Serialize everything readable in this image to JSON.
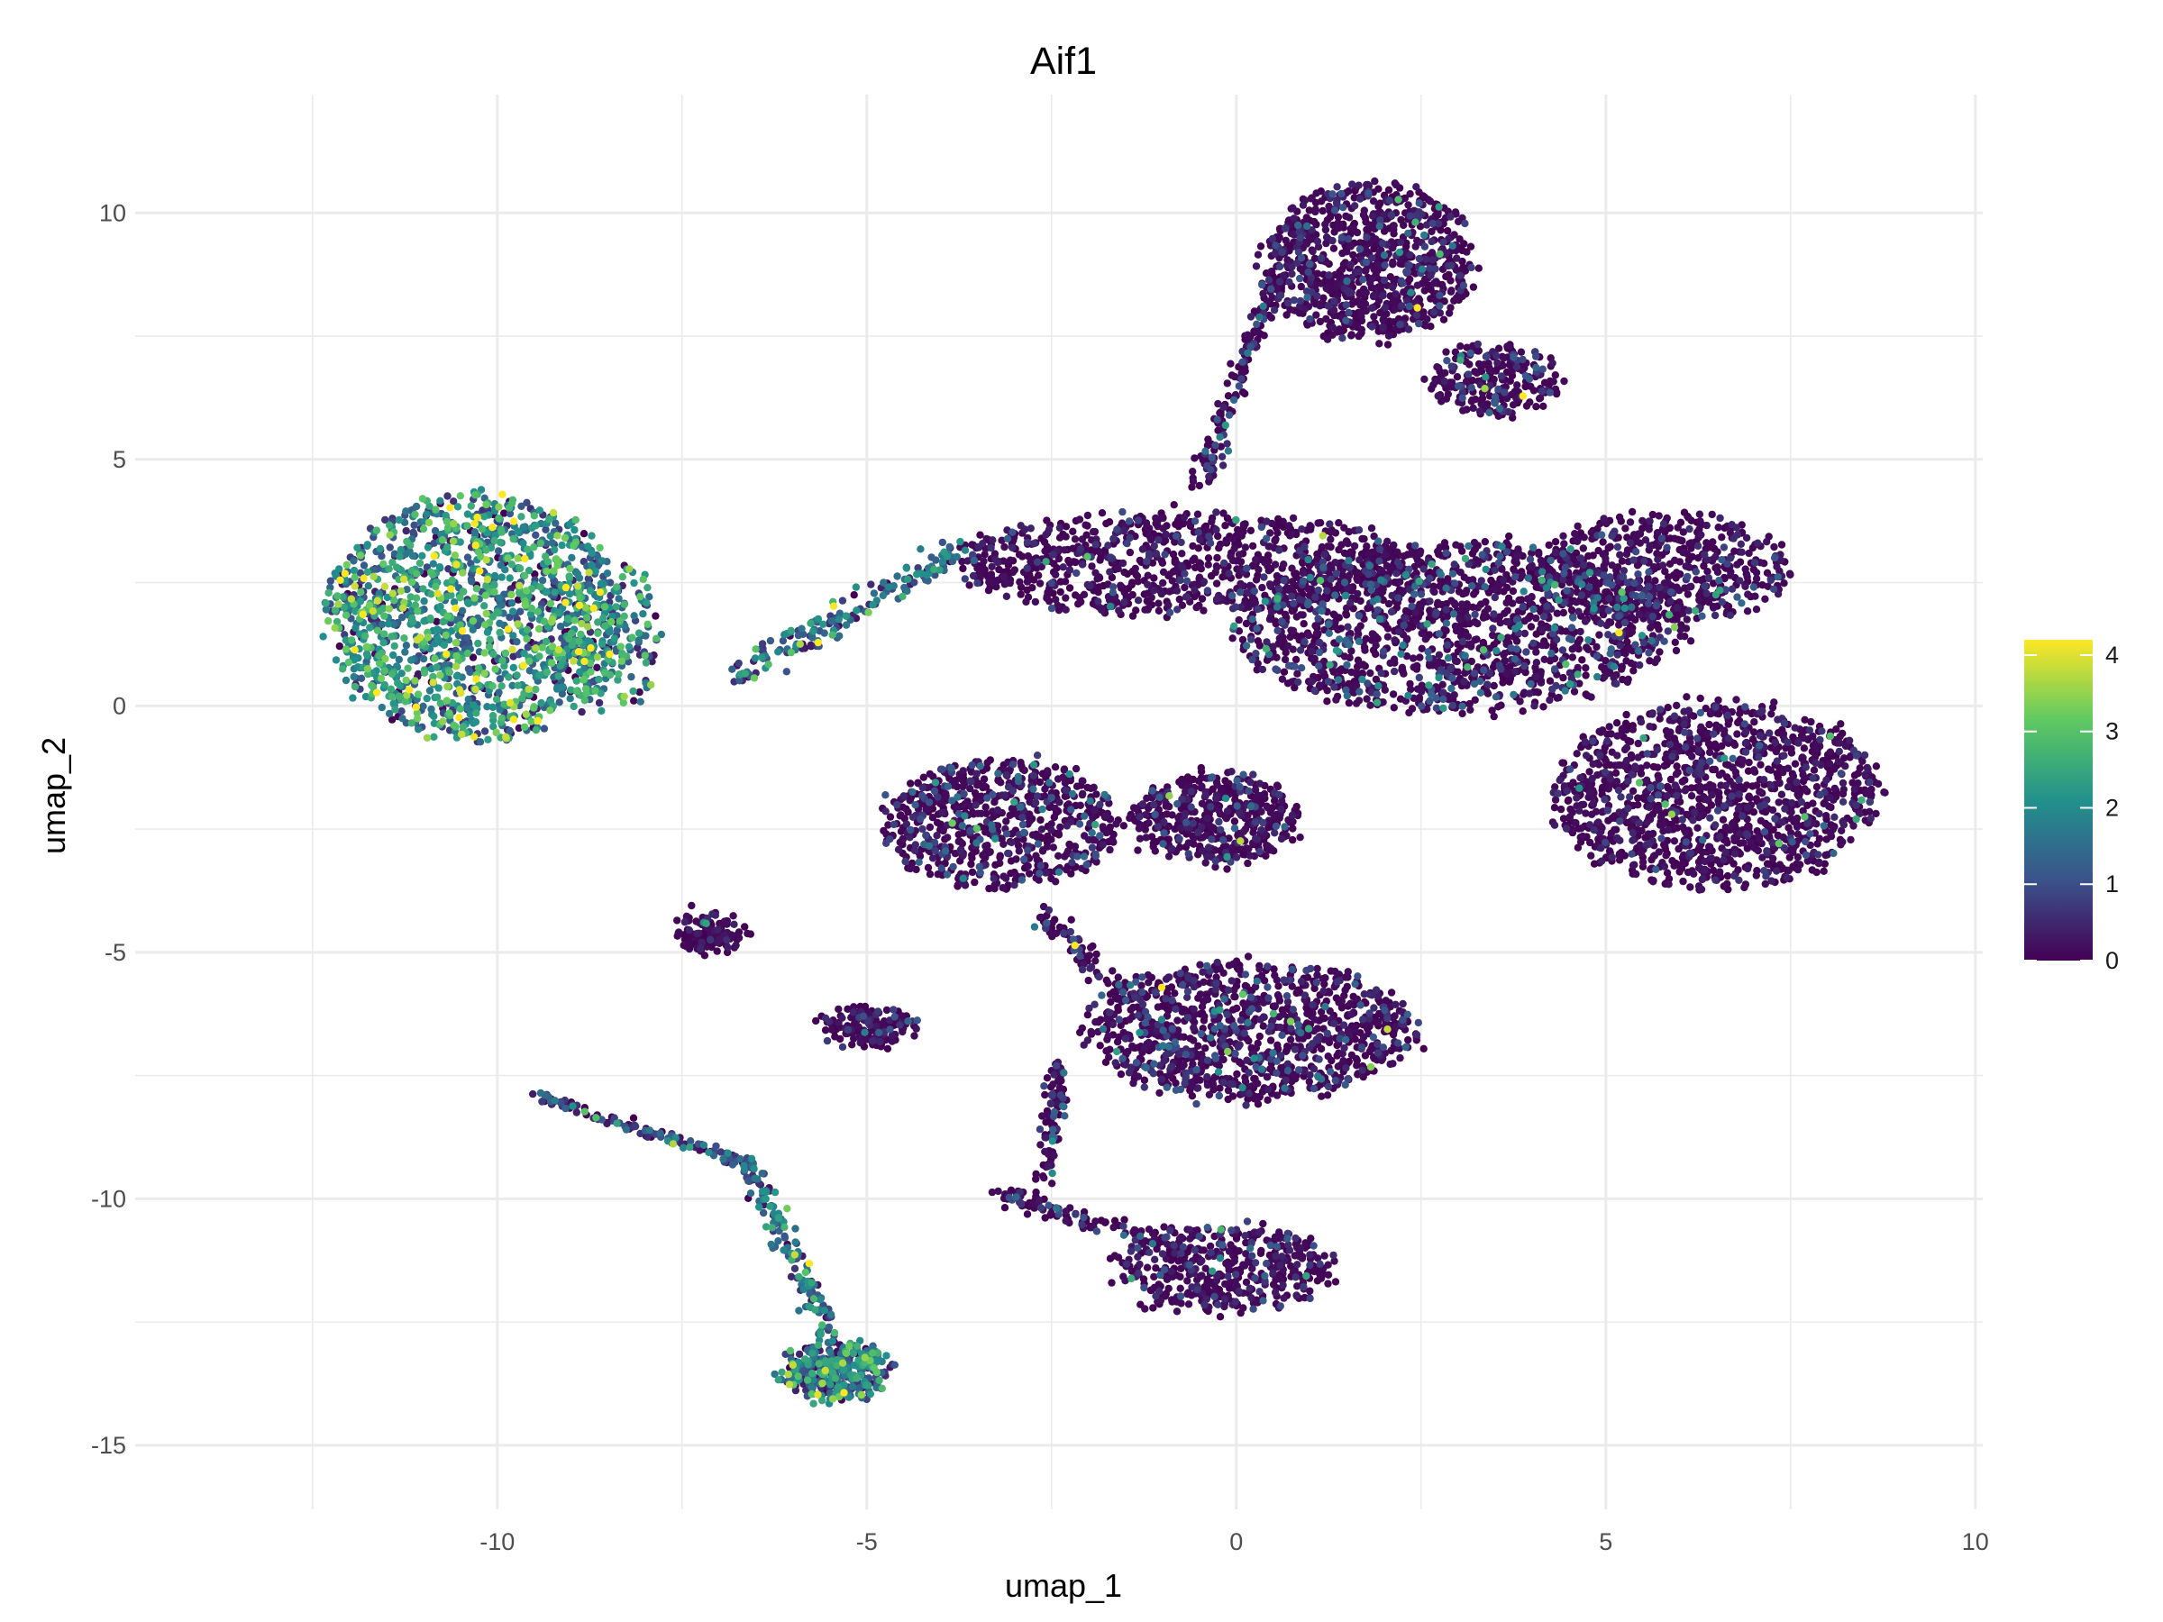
{
  "chart_data": {
    "type": "scatter",
    "title": "Aif1",
    "xlabel": "umap_1",
    "ylabel": "umap_2",
    "xlim": [
      -14.9,
      10.1
    ],
    "ylim": [
      -16.3,
      12.4
    ],
    "x_ticks": [
      "-10",
      "-5",
      "0",
      "5",
      "10"
    ],
    "x_tick_values": [
      -10,
      -5,
      0,
      5,
      10
    ],
    "y_ticks": [
      "-15",
      "-10",
      "-5",
      "0",
      "5",
      "10"
    ],
    "y_tick_values": [
      -15,
      -10,
      -5,
      0,
      5,
      10
    ],
    "grid": true,
    "color_scale": {
      "name": "viridis",
      "min": 0,
      "max": 4.2,
      "ticks": [
        "0",
        "1",
        "2",
        "3",
        "4"
      ],
      "tick_values": [
        0,
        1,
        2,
        3,
        4
      ],
      "stops": [
        "#440154",
        "#3b528b",
        "#21918c",
        "#5ec962",
        "#fde725"
      ],
      "placement": "right"
    },
    "clusters": [
      {
        "name": "left cluster",
        "cx": -10.3,
        "cy": 1.8,
        "rx": 2.0,
        "ry": 2.5,
        "n": 1400,
        "mean_expr": 1.9,
        "spread": 1.0
      },
      {
        "name": "left tail",
        "cx": -8.6,
        "cy": 1.4,
        "rx": 0.8,
        "ry": 1.6,
        "n": 200,
        "mean_expr": 1.5,
        "spread": 1.0
      },
      {
        "name": "upper cluster",
        "cx": 1.8,
        "cy": 9.0,
        "rx": 1.4,
        "ry": 1.6,
        "n": 900,
        "mean_expr": 0.2,
        "spread": 0.5
      },
      {
        "name": "upper extension",
        "cx": 3.5,
        "cy": 6.6,
        "rx": 0.9,
        "ry": 0.7,
        "n": 250,
        "mean_expr": 0.3,
        "spread": 0.6
      },
      {
        "name": "center-left band",
        "cx": -0.7,
        "cy": 2.9,
        "rx": 3.2,
        "ry": 1.0,
        "n": 900,
        "mean_expr": 0.15,
        "spread": 0.4
      },
      {
        "name": "central mass",
        "cx": 3.0,
        "cy": 1.6,
        "rx": 3.0,
        "ry": 1.7,
        "n": 1500,
        "mean_expr": 0.4,
        "spread": 0.9
      },
      {
        "name": "right upper lobe",
        "cx": 5.8,
        "cy": 2.8,
        "rx": 1.7,
        "ry": 1.1,
        "n": 550,
        "mean_expr": 0.2,
        "spread": 0.5
      },
      {
        "name": "right lower lobe",
        "cx": 6.5,
        "cy": -1.8,
        "rx": 2.2,
        "ry": 1.9,
        "n": 1300,
        "mean_expr": 0.15,
        "spread": 0.4
      },
      {
        "name": "mid-left cluster",
        "cx": -3.2,
        "cy": -2.4,
        "rx": 1.6,
        "ry": 1.3,
        "n": 700,
        "mean_expr": 0.4,
        "spread": 0.7
      },
      {
        "name": "mid cluster",
        "cx": -0.3,
        "cy": -2.3,
        "rx": 1.1,
        "ry": 0.9,
        "n": 450,
        "mean_expr": 0.25,
        "spread": 0.5
      },
      {
        "name": "lower-center cluster",
        "cx": 0.2,
        "cy": -6.6,
        "rx": 2.2,
        "ry": 1.4,
        "n": 1100,
        "mean_expr": 0.3,
        "spread": 0.6
      },
      {
        "name": "small island",
        "cx": -7.1,
        "cy": -4.6,
        "rx": 0.45,
        "ry": 0.4,
        "n": 120,
        "mean_expr": 0.1,
        "spread": 0.3
      },
      {
        "name": "small lower cluster",
        "cx": -5.0,
        "cy": -6.5,
        "rx": 0.6,
        "ry": 0.35,
        "n": 160,
        "mean_expr": 0.2,
        "spread": 0.4
      },
      {
        "name": "bottom cluster",
        "cx": -5.4,
        "cy": -13.5,
        "rx": 0.7,
        "ry": 0.6,
        "n": 320,
        "mean_expr": 1.4,
        "spread": 1.0
      },
      {
        "name": "bottom-center cluster",
        "cx": -0.2,
        "cy": -11.4,
        "rx": 1.5,
        "ry": 0.9,
        "n": 450,
        "mean_expr": 0.2,
        "spread": 0.5
      }
    ],
    "trajectories": [
      {
        "name": "bridge to left",
        "from": [
          -3.8,
          3.1
        ],
        "to": [
          -6.8,
          0.6
        ],
        "n": 170,
        "width": 0.25,
        "mean_expr": 1.3
      },
      {
        "name": "upper connector",
        "from": [
          -0.5,
          4.5
        ],
        "to": [
          0.5,
          8.6
        ],
        "n": 140,
        "width": 0.15,
        "mean_expr": 0.5
      },
      {
        "name": "bottom-left trajectory a",
        "from": [
          -9.5,
          -7.9
        ],
        "to": [
          -6.6,
          -9.3
        ],
        "n": 120,
        "width": 0.12,
        "mean_expr": 0.6
      },
      {
        "name": "bottom-left trajectory b",
        "from": [
          -6.6,
          -9.3
        ],
        "to": [
          -5.5,
          -12.8
        ],
        "n": 140,
        "width": 0.2,
        "mean_expr": 1.3
      },
      {
        "name": "vertical connector",
        "from": [
          -2.4,
          -7.2
        ],
        "to": [
          -2.6,
          -9.6
        ],
        "n": 90,
        "width": 0.15,
        "mean_expr": 0.3
      },
      {
        "name": "mid connector",
        "from": [
          -2.6,
          -4.2
        ],
        "to": [
          -1.5,
          -6.0
        ],
        "n": 80,
        "width": 0.2,
        "mean_expr": 0.3
      },
      {
        "name": "bottom connector",
        "from": [
          -3.2,
          -9.9
        ],
        "to": [
          -0.8,
          -11.0
        ],
        "n": 110,
        "width": 0.2,
        "mean_expr": 0.2
      }
    ]
  }
}
